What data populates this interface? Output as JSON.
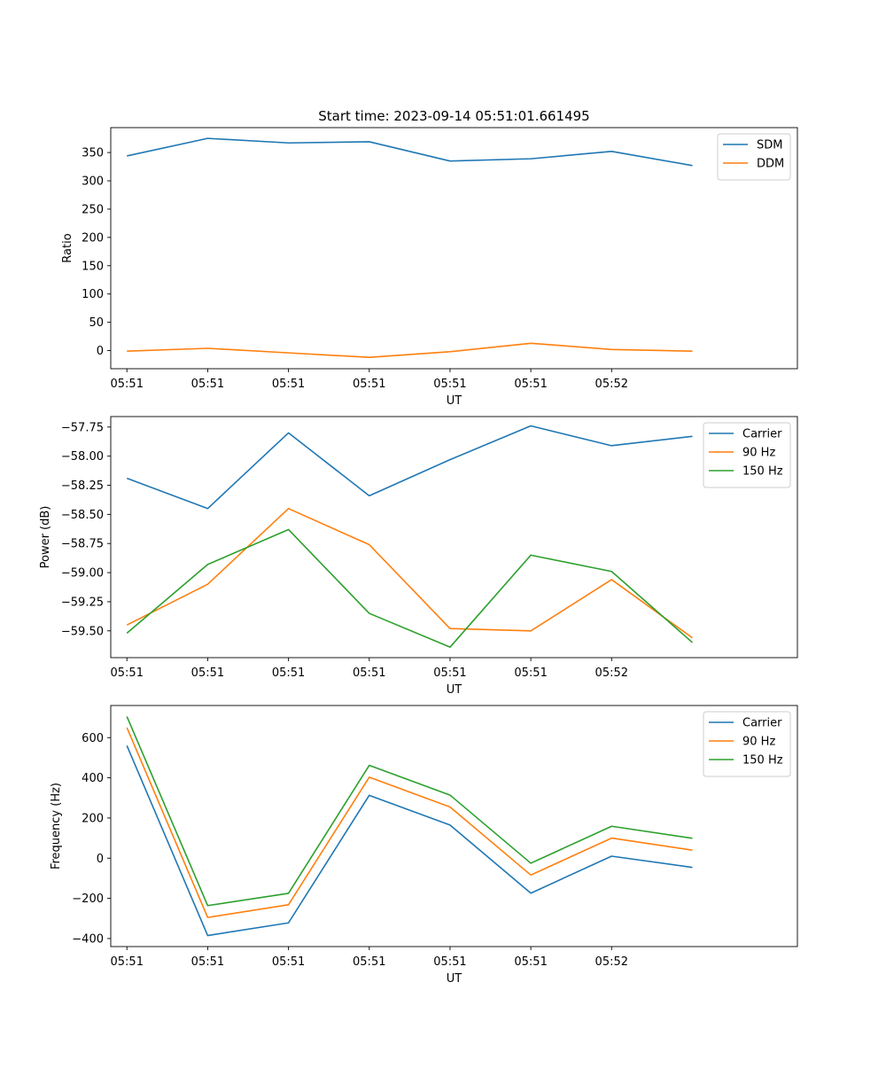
{
  "figure_title": "Start time: 2023-09-14 05:51:01.661495",
  "colors": {
    "c0": "#1f77b4",
    "c1": "#ff7f0e",
    "c2": "#2ca02c"
  },
  "chart_data": [
    {
      "type": "line",
      "title": "Start time: 2023-09-14 05:51:01.661495",
      "xlabel": "UT",
      "ylabel": "Ratio",
      "x": [
        1,
        2,
        3,
        4,
        5,
        6,
        7,
        8
      ],
      "xlim": [
        0.8,
        9.3
      ],
      "xticks": [
        1,
        2,
        3,
        4,
        5,
        6,
        7
      ],
      "xticklabels": [
        "05:51",
        "05:51",
        "05:51",
        "05:51",
        "05:51",
        "05:51",
        "05:52"
      ],
      "ylim": [
        -32,
        394
      ],
      "yticks": [
        0,
        50,
        100,
        150,
        200,
        250,
        300,
        350
      ],
      "yticklabels": [
        "0",
        "50",
        "100",
        "150",
        "200",
        "250",
        "300",
        "350"
      ],
      "legend_position": "top-right",
      "series": [
        {
          "name": "SDM",
          "color": "#1f77b4",
          "values": [
            344,
            375,
            367,
            369,
            335,
            339,
            352,
            327
          ]
        },
        {
          "name": "DDM",
          "color": "#ff7f0e",
          "values": [
            -1,
            4,
            -4,
            -12,
            -2,
            13,
            2,
            -1
          ]
        }
      ]
    },
    {
      "type": "line",
      "title": "",
      "xlabel": "UT",
      "ylabel": "Power (dB)",
      "x": [
        1,
        2,
        3,
        4,
        5,
        6,
        7,
        8
      ],
      "xlim": [
        0.8,
        9.3
      ],
      "xticks": [
        1,
        2,
        3,
        4,
        5,
        6,
        7
      ],
      "xticklabels": [
        "05:51",
        "05:51",
        "05:51",
        "05:51",
        "05:51",
        "05:51",
        "05:52"
      ],
      "ylim": [
        -59.73,
        -57.66
      ],
      "yticks": [
        -59.5,
        -59.25,
        -59.0,
        -58.75,
        -58.5,
        -58.25,
        -58.0,
        -57.75
      ],
      "yticklabels": [
        "−59.50",
        "−59.25",
        "−59.00",
        "−58.75",
        "−58.50",
        "−58.25",
        "−58.00",
        "−57.75"
      ],
      "legend_position": "top-right",
      "series": [
        {
          "name": "Carrier",
          "color": "#1f77b4",
          "values": [
            -58.19,
            -58.45,
            -57.8,
            -58.34,
            -58.03,
            -57.74,
            -57.91,
            -57.83
          ]
        },
        {
          "name": "90 Hz",
          "color": "#ff7f0e",
          "values": [
            -59.45,
            -59.1,
            -58.45,
            -58.76,
            -59.48,
            -59.5,
            -59.06,
            -59.56
          ]
        },
        {
          "name": "150 Hz",
          "color": "#2ca02c",
          "values": [
            -59.52,
            -58.93,
            -58.63,
            -59.35,
            -59.64,
            -58.85,
            -58.99,
            -59.6
          ]
        }
      ]
    },
    {
      "type": "line",
      "title": "",
      "xlabel": "UT",
      "ylabel": "Frequency (Hz)",
      "x": [
        1,
        2,
        3,
        4,
        5,
        6,
        7,
        8
      ],
      "xlim": [
        0.8,
        9.3
      ],
      "xticks": [
        1,
        2,
        3,
        4,
        5,
        6,
        7
      ],
      "xticklabels": [
        "05:51",
        "05:51",
        "05:51",
        "05:51",
        "05:51",
        "05:51",
        "05:52"
      ],
      "ylim": [
        -440,
        760
      ],
      "yticks": [
        -400,
        -200,
        0,
        200,
        400,
        600
      ],
      "yticklabels": [
        "−400",
        "−200",
        "0",
        "200",
        "400",
        "600"
      ],
      "legend_position": "top-right",
      "series": [
        {
          "name": "Carrier",
          "color": "#1f77b4",
          "values": [
            560,
            -385,
            -322,
            313,
            165,
            -174,
            10,
            -46
          ]
        },
        {
          "name": "90 Hz",
          "color": "#ff7f0e",
          "values": [
            650,
            -295,
            -232,
            403,
            255,
            -84,
            100,
            40
          ]
        },
        {
          "name": "150 Hz",
          "color": "#2ca02c",
          "values": [
            705,
            -236,
            -175,
            462,
            314,
            -25,
            159,
            99
          ]
        }
      ]
    }
  ]
}
